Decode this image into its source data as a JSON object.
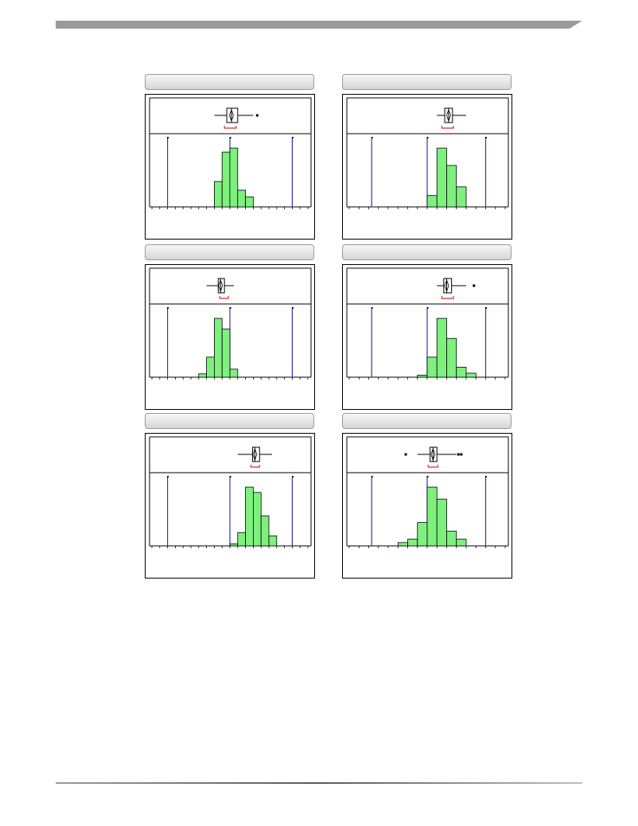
{
  "colors": {
    "bar_fill": "#7ef07e",
    "bar_stroke": "#000000",
    "spec_line": "#3a2fb0",
    "bracket": "#d23020",
    "header": "#9b9b9b"
  },
  "chart_data": [
    {
      "type": "histogram",
      "title": "",
      "xlabel": "",
      "ylabel": "",
      "x_range": [
        0,
        20
      ],
      "y_range": [
        0,
        100
      ],
      "bins": [
        {
          "x0": 8,
          "x1": 9,
          "count": 38
        },
        {
          "x0": 9,
          "x1": 10,
          "count": 82
        },
        {
          "x0": 10,
          "x1": 11,
          "count": 88
        },
        {
          "x0": 11,
          "x1": 12,
          "count": 25
        },
        {
          "x0": 12,
          "x1": 13,
          "count": 15
        }
      ],
      "spec_lines": [
        2,
        10,
        18
      ],
      "boxplot": {
        "whisker_low": 8,
        "q1": 9.6,
        "median": 10.2,
        "q3": 11.0,
        "whisker_high": 13,
        "outliers": [
          13.5
        ]
      },
      "mean_bracket": [
        9.3,
        10.8
      ]
    },
    {
      "type": "histogram",
      "title": "",
      "xlabel": "",
      "ylabel": "",
      "x_range": [
        0,
        16
      ],
      "y_range": [
        0,
        100
      ],
      "bins": [
        {
          "x0": 8,
          "x1": 9,
          "count": 17
        },
        {
          "x0": 9,
          "x1": 10,
          "count": 88
        },
        {
          "x0": 10,
          "x1": 11,
          "count": 62
        },
        {
          "x0": 11,
          "x1": 12,
          "count": 30
        }
      ],
      "spec_lines": [
        2.3,
        8,
        14
      ],
      "boxplot": {
        "whisker_low": 9,
        "q1": 9.8,
        "median": 10.2,
        "q3": 10.6,
        "whisker_high": 12,
        "outliers": []
      },
      "mean_bracket": [
        9.5,
        10.7
      ]
    },
    {
      "type": "histogram",
      "title": "",
      "xlabel": "",
      "ylabel": "",
      "x_range": [
        0,
        20
      ],
      "y_range": [
        0,
        100
      ],
      "bins": [
        {
          "x0": 6,
          "x1": 7,
          "count": 5
        },
        {
          "x0": 7,
          "x1": 8,
          "count": 30
        },
        {
          "x0": 8,
          "x1": 9,
          "count": 88
        },
        {
          "x0": 9,
          "x1": 10,
          "count": 72
        },
        {
          "x0": 10,
          "x1": 11,
          "count": 12
        }
      ],
      "spec_lines": [
        2,
        10,
        18
      ],
      "boxplot": {
        "whisker_low": 7,
        "q1": 8.5,
        "median": 8.8,
        "q3": 9.3,
        "whisker_high": 10.5,
        "outliers": []
      },
      "mean_bracket": [
        8.7,
        9.8
      ]
    },
    {
      "type": "histogram",
      "title": "",
      "xlabel": "",
      "ylabel": "",
      "x_range": [
        0,
        16
      ],
      "y_range": [
        0,
        100
      ],
      "bins": [
        {
          "x0": 7,
          "x1": 8,
          "count": 3
        },
        {
          "x0": 8,
          "x1": 9,
          "count": 30
        },
        {
          "x0": 9,
          "x1": 10,
          "count": 88
        },
        {
          "x0": 10,
          "x1": 11,
          "count": 58
        },
        {
          "x0": 11,
          "x1": 12,
          "count": 15
        },
        {
          "x0": 12,
          "x1": 13,
          "count": 6
        }
      ],
      "spec_lines": [
        2.3,
        8,
        14
      ],
      "boxplot": {
        "whisker_low": 9,
        "q1": 9.7,
        "median": 10.0,
        "q3": 10.5,
        "whisker_high": 12,
        "outliers": [
          12.8
        ]
      },
      "mean_bracket": [
        9.5,
        10.7
      ]
    },
    {
      "type": "histogram",
      "title": "",
      "xlabel": "",
      "ylabel": "",
      "x_range": [
        0,
        20
      ],
      "y_range": [
        0,
        100
      ],
      "bins": [
        {
          "x0": 10,
          "x1": 11,
          "count": 3
        },
        {
          "x0": 11,
          "x1": 12,
          "count": 20
        },
        {
          "x0": 12,
          "x1": 13,
          "count": 88
        },
        {
          "x0": 13,
          "x1": 14,
          "count": 80
        },
        {
          "x0": 14,
          "x1": 15,
          "count": 45
        },
        {
          "x0": 15,
          "x1": 16,
          "count": 15
        }
      ],
      "spec_lines": [
        2,
        10,
        18
      ],
      "boxplot": {
        "whisker_low": 11,
        "q1": 12.9,
        "median": 13.2,
        "q3": 13.8,
        "whisker_high": 15.4,
        "outliers": []
      },
      "mean_bracket": [
        12.7,
        13.8
      ]
    },
    {
      "type": "histogram",
      "title": "",
      "xlabel": "",
      "ylabel": "",
      "x_range": [
        0,
        16
      ],
      "y_range": [
        0,
        100
      ],
      "bins": [
        {
          "x0": 5,
          "x1": 6,
          "count": 5
        },
        {
          "x0": 6,
          "x1": 7,
          "count": 10
        },
        {
          "x0": 7,
          "x1": 8,
          "count": 35
        },
        {
          "x0": 8,
          "x1": 9,
          "count": 88
        },
        {
          "x0": 9,
          "x1": 10,
          "count": 70
        },
        {
          "x0": 10,
          "x1": 11,
          "count": 22
        },
        {
          "x0": 11,
          "x1": 12,
          "count": 10
        }
      ],
      "spec_lines": [
        2.3,
        8,
        14
      ],
      "boxplot": {
        "whisker_low": 7,
        "q1": 8.3,
        "median": 8.6,
        "q3": 9.0,
        "whisker_high": 11,
        "outliers": [
          5.8,
          11.2,
          11.5
        ]
      },
      "mean_bracket": [
        8.1,
        9.1
      ]
    }
  ]
}
